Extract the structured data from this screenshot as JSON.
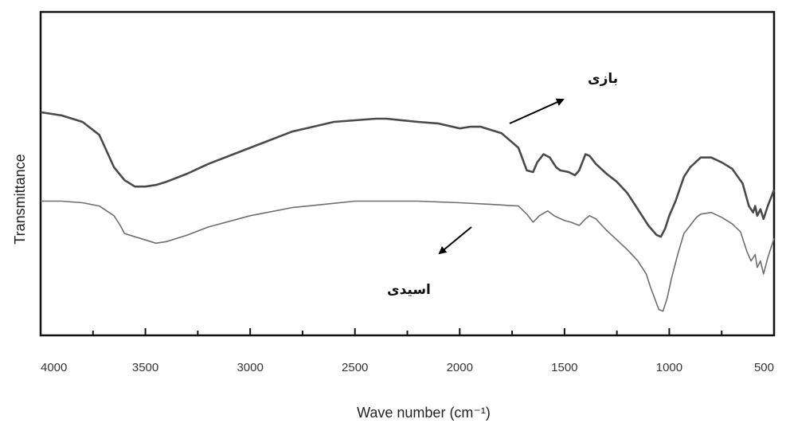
{
  "chart_data": {
    "type": "line",
    "title": "",
    "xlabel": "Wave number (cm⁻¹)",
    "ylabel": "Transmittance",
    "xlim": [
      4000,
      500
    ],
    "x_reversed": true,
    "ylim": [
      0,
      100
    ],
    "grid": false,
    "legend": "none",
    "x_tick_labels": [
      {
        "value": 4000,
        "label": "4000"
      },
      {
        "value": 3500,
        "label": "3500"
      },
      {
        "value": 3000,
        "label": "3000"
      },
      {
        "value": 2500,
        "label": "2500"
      },
      {
        "value": 2000,
        "label": "2000"
      },
      {
        "value": 1500,
        "label": "1500"
      },
      {
        "value": 1000,
        "label": "1000"
      },
      {
        "value": 500,
        "label": "500"
      }
    ],
    "x_minor_ticks": [
      3750,
      3250,
      2750,
      2250,
      1750,
      1250,
      750
    ],
    "series": [
      {
        "color": "#4a4a4a",
        "x": [
          4000,
          3900,
          3800,
          3720,
          3650,
          3600,
          3550,
          3500,
          3450,
          3400,
          3300,
          3200,
          3000,
          2800,
          2600,
          2400,
          2350,
          2200,
          2100,
          2000,
          1950,
          1900,
          1800,
          1720,
          1680,
          1650,
          1630,
          1600,
          1570,
          1540,
          1520,
          1480,
          1450,
          1430,
          1400,
          1380,
          1350,
          1300,
          1250,
          1200,
          1150,
          1100,
          1060,
          1040,
          1020,
          1000,
          970,
          930,
          900,
          850,
          800,
          750,
          700,
          650,
          620,
          600,
          590,
          580,
          565,
          550,
          530,
          500
        ],
        "values": [
          69,
          68,
          66,
          62,
          52,
          48,
          46,
          46,
          46.5,
          47.5,
          50,
          53,
          58,
          63,
          66,
          67,
          67,
          66,
          65.5,
          64,
          64.5,
          64.5,
          62.5,
          58,
          51,
          50.5,
          53.5,
          56,
          55,
          52,
          51,
          50.5,
          49.5,
          51,
          56,
          55.5,
          53,
          50,
          47.5,
          44,
          39,
          34,
          31,
          30.5,
          33,
          37,
          41.5,
          49,
          52,
          55,
          55,
          53.5,
          51.5,
          47,
          40,
          38,
          40,
          37,
          39,
          36,
          40,
          45
        ]
      },
      {
        "color": "#6e6e6e",
        "x": [
          4000,
          3900,
          3800,
          3720,
          3650,
          3620,
          3600,
          3550,
          3500,
          3450,
          3400,
          3300,
          3200,
          3000,
          2800,
          2500,
          2200,
          2000,
          1850,
          1720,
          1680,
          1650,
          1620,
          1580,
          1550,
          1500,
          1470,
          1430,
          1400,
          1380,
          1350,
          1300,
          1200,
          1150,
          1110,
          1090,
          1070,
          1050,
          1030,
          1010,
          990,
          960,
          930,
          900,
          870,
          850,
          800,
          750,
          700,
          660,
          630,
          610,
          590,
          580,
          565,
          550,
          530,
          500
        ],
        "values": [
          41.5,
          41.5,
          41,
          40,
          37,
          34,
          31.5,
          30.5,
          29.5,
          28.5,
          29,
          31,
          33.5,
          37,
          39.5,
          41.5,
          41.5,
          41,
          40.5,
          40,
          37.5,
          35,
          37,
          38.5,
          37,
          35.5,
          35,
          34,
          36,
          37,
          36,
          32.5,
          26.5,
          23,
          19,
          15,
          11.5,
          8,
          7.5,
          11.5,
          17.5,
          25,
          31.5,
          34,
          36.5,
          37.5,
          38,
          36.5,
          34.5,
          32,
          26,
          23,
          25,
          21,
          23,
          19,
          24,
          30
        ]
      }
    ],
    "annotations": [
      {
        "text": "بازی",
        "series_index": 0
      },
      {
        "text": "اسیدی",
        "series_index": 1
      }
    ]
  }
}
